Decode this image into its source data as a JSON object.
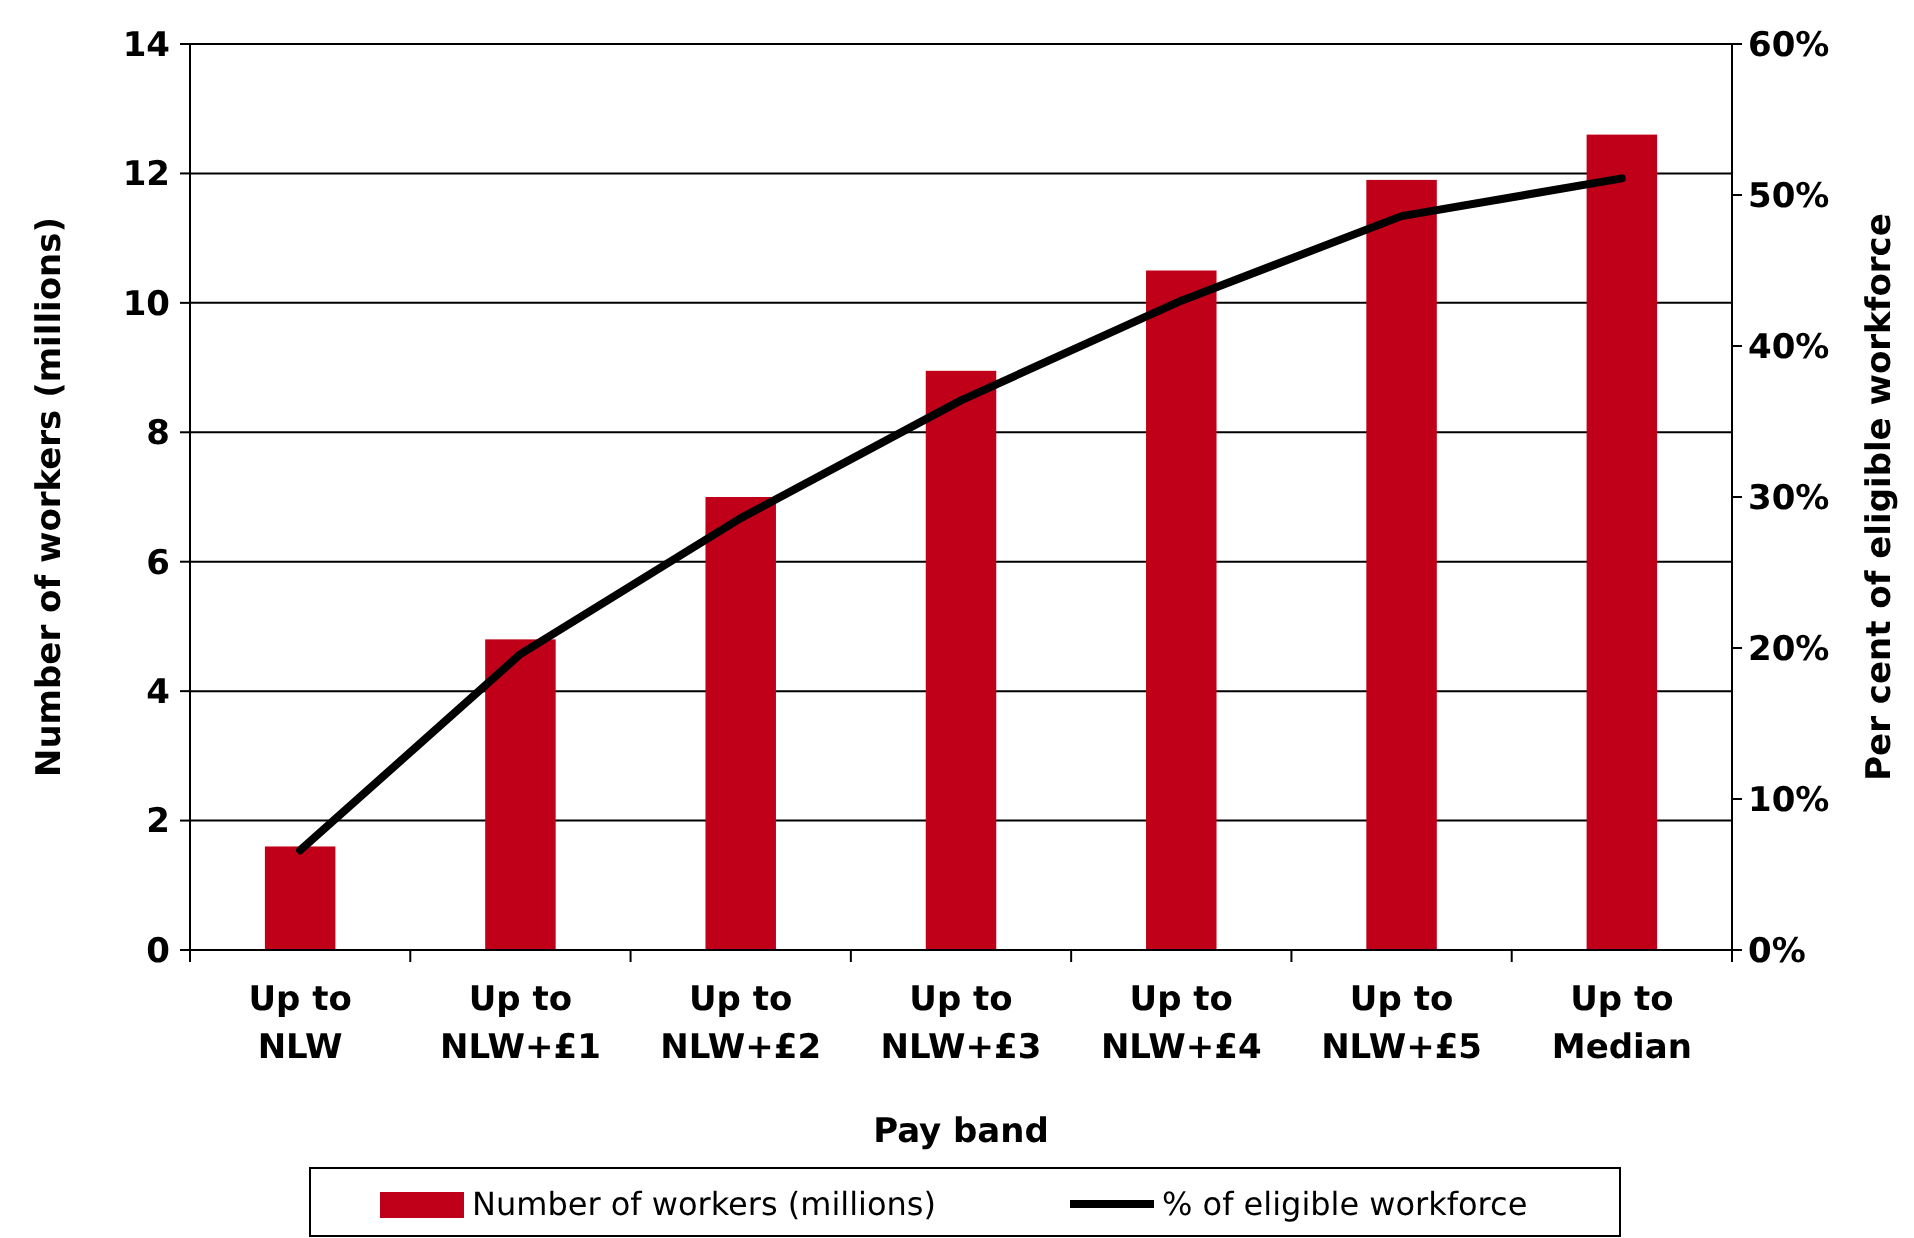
{
  "chart_data": {
    "type": "bar",
    "xlabel": "Pay band",
    "ylabel": "Number of workers (millions)",
    "y2label": "Per cent of eligible workforce",
    "categories": [
      "Up to NLW",
      "Up to NLW+£1",
      "Up to NLW+£2",
      "Up to NLW+£3",
      "Up to NLW+£4",
      "Up to NLW+£5",
      "Up to Median"
    ],
    "series": [
      {
        "name": "Number of workers (millions)",
        "color": "#c00018",
        "values": [
          1.6,
          4.8,
          7.0,
          8.95,
          10.5,
          11.9,
          12.6
        ]
      },
      {
        "name": "% of eligible workforce",
        "type": "line",
        "axis": "y2",
        "color": "#000000",
        "values": [
          6.6,
          19.6,
          28.6,
          36.4,
          43,
          48.6,
          51.1
        ]
      }
    ],
    "ylim": [
      0,
      14
    ],
    "yticks": [
      0,
      2,
      4,
      6,
      8,
      10,
      12,
      14
    ],
    "y2lim": [
      0,
      60
    ],
    "y2ticks": [
      {
        "value": 0,
        "label": "0%"
      },
      {
        "value": 10,
        "label": "10%"
      },
      {
        "value": 20,
        "label": "20%"
      },
      {
        "value": 30,
        "label": "30%"
      },
      {
        "value": 40,
        "label": "40%"
      },
      {
        "value": 50,
        "label": "50%"
      },
      {
        "value": 60,
        "label": "60%"
      }
    ],
    "grid": "y",
    "legend": "bottom",
    "marker": "none",
    "line_style": "solid"
  }
}
